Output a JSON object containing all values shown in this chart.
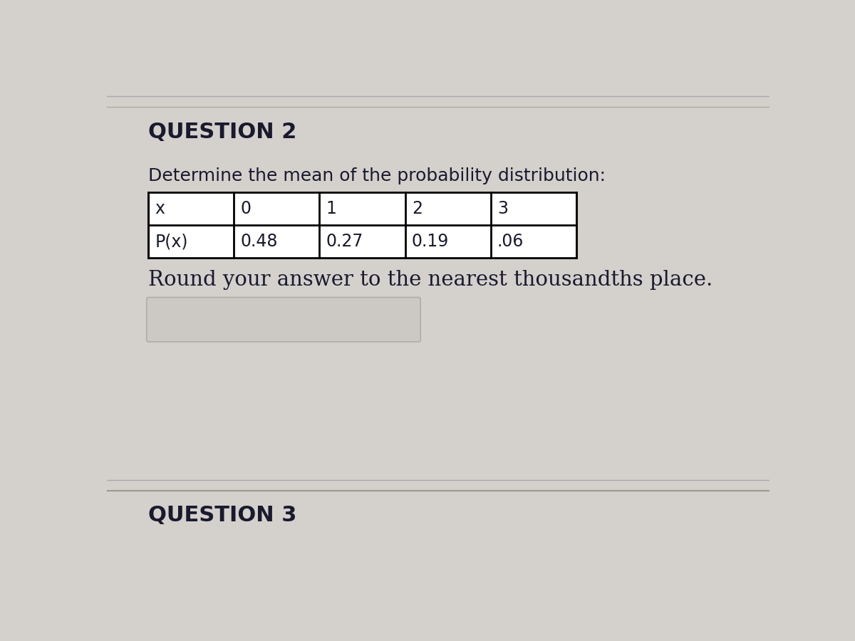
{
  "question_label": "QUESTION 2",
  "question3_label": "QUESTION 3",
  "description": "Determine the mean of the probability distribution:",
  "round_text": "Round your answer to the nearest thousandths place.",
  "table_headers": [
    "x",
    "0",
    "1",
    "2",
    "3"
  ],
  "table_row2": [
    "P(x)",
    "0.48",
    "0.27",
    "0.19",
    ".06"
  ],
  "bg_color": "#d4d0cc",
  "table_bg": "#ffffff",
  "text_color": "#1a1a2e",
  "line_color": "#999999",
  "answer_box_color": "#ccc9c5"
}
